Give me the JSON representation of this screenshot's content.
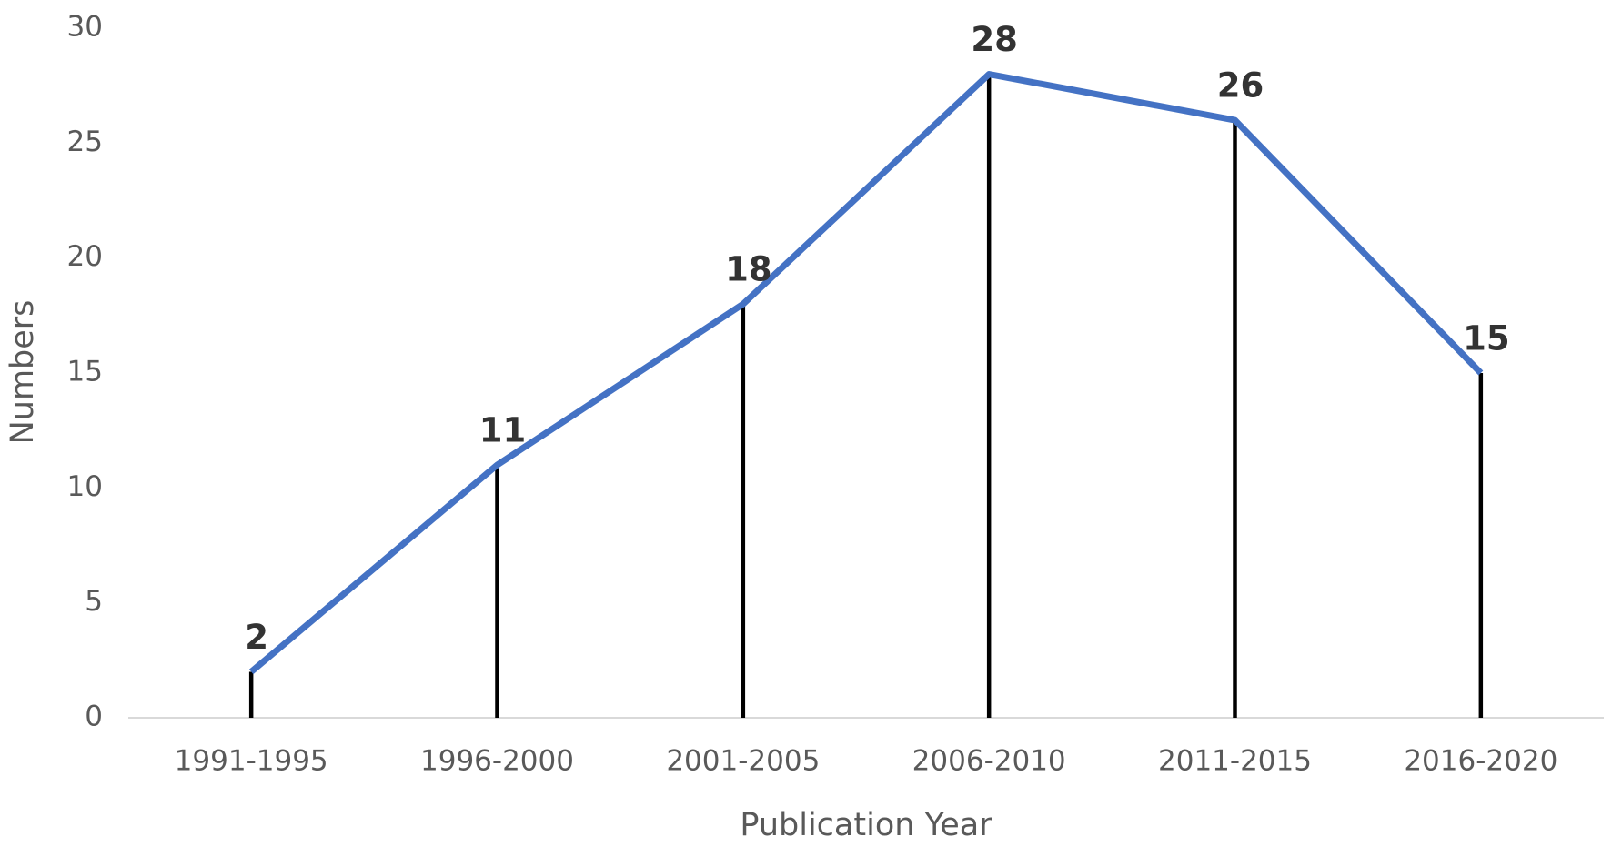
{
  "chart_data": {
    "type": "line",
    "x_label": "Publication Year",
    "y_label": "Numbers",
    "categories": [
      "1991-1995",
      "1996-2000",
      "2001-2005",
      "2006-2010",
      "2011-2015",
      "2016-2020"
    ],
    "values": [
      2,
      11,
      18,
      28,
      26,
      15
    ],
    "color": "#4472c4",
    "drop_lines": true,
    "drop_line_color": "#000000",
    "data_labels": true,
    "ylim": [
      0,
      30
    ],
    "yticks": [
      0,
      5,
      10,
      15,
      20,
      25,
      30
    ],
    "grid": false
  }
}
